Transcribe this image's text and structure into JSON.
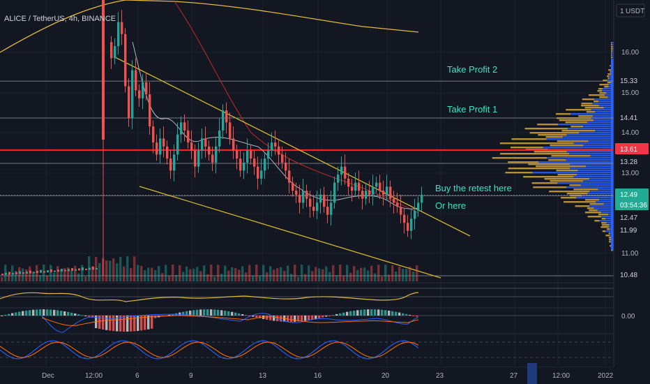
{
  "header": {
    "title": "ALICE / TetherUS, 4h, BINANCE"
  },
  "price_axis": {
    "currency_button": "USDT",
    "currency_prefix": "1",
    "ticks": [
      "16.00",
      "15.00",
      "14.00",
      "13.00",
      "11.00"
    ],
    "indicator_tick": "0.00"
  },
  "time_axis": {
    "ticks": [
      "Dec",
      "12:00",
      "6",
      "9",
      "13",
      "16",
      "20",
      "23",
      "27",
      "12:00",
      "2022"
    ]
  },
  "price_labels": [
    {
      "value": "15.33",
      "bg": "#131722",
      "fg": "#d1d4dc"
    },
    {
      "value": "14.41",
      "bg": "#131722",
      "fg": "#d1d4dc"
    },
    {
      "value": "13.61",
      "bg": "#f23645",
      "fg": "#ffffff"
    },
    {
      "value": "13.28",
      "bg": "#131722",
      "fg": "#d1d4dc"
    },
    {
      "value": "12.49",
      "bg": "#22ab94",
      "fg": "#ffffff"
    },
    {
      "value": "03:54:36",
      "bg": "#22ab94",
      "fg": "#ffffff"
    },
    {
      "value": "12.47",
      "bg": "#131722",
      "fg": "#d1d4dc"
    },
    {
      "value": "11.99",
      "bg": "#131722",
      "fg": "#d1d4dc"
    },
    {
      "value": "10.48",
      "bg": "#131722",
      "fg": "#d1d4dc"
    }
  ],
  "annotations": [
    {
      "text": "Take Profit 2"
    },
    {
      "text": "Take Profit 1"
    },
    {
      "text": "Buy the retest here"
    },
    {
      "text": "Or here"
    }
  ],
  "chart_data": {
    "type": "candlestick",
    "symbol": "ALICE / TetherUS",
    "interval": "4h",
    "exchange": "BINANCE",
    "horizontal_levels": [
      15.33,
      14.41,
      13.61,
      13.28,
      12.47,
      10.48
    ],
    "last_price": 12.49,
    "colors": {
      "up": "#26a69a",
      "down": "#ef5350",
      "level_major": "#ff1f1f",
      "trendline": "#d4b62c",
      "text_annotation": "#2ee8c9",
      "volume_profile_up": "#2962ff",
      "volume_profile_down": "#d4a43a"
    },
    "closes": [
      15.9,
      16.2,
      16.8,
      16.5,
      15.2,
      14.4,
      15.6,
      15.1,
      14.9,
      15.3,
      15.0,
      14.2,
      13.8,
      13.5,
      13.9,
      13.7,
      13.4,
      13.1,
      13.5,
      14.0,
      14.3,
      14.1,
      13.8,
      13.6,
      13.2,
      13.6,
      13.9,
      13.7,
      13.5,
      13.3,
      13.7,
      14.1,
      14.6,
      14.3,
      13.9,
      13.6,
      13.4,
      13.1,
      13.3,
      13.6,
      13.4,
      13.2,
      12.9,
      13.1,
      13.4,
      13.6,
      13.8,
      13.7,
      13.5,
      13.3,
      13.1,
      12.8,
      12.6,
      12.5,
      12.3,
      12.6,
      12.4,
      12.2,
      12.1,
      12.3,
      12.5,
      12.2,
      12.0,
      12.3,
      12.8,
      13.0,
      13.2,
      12.9,
      12.7,
      12.6,
      12.8,
      12.6,
      12.4,
      12.6,
      12.5,
      12.7,
      12.8,
      12.6,
      12.5,
      12.7,
      12.4,
      12.3,
      12.2,
      12.0,
      11.8,
      11.6,
      11.9,
      12.1,
      12.3,
      12.5
    ]
  }
}
